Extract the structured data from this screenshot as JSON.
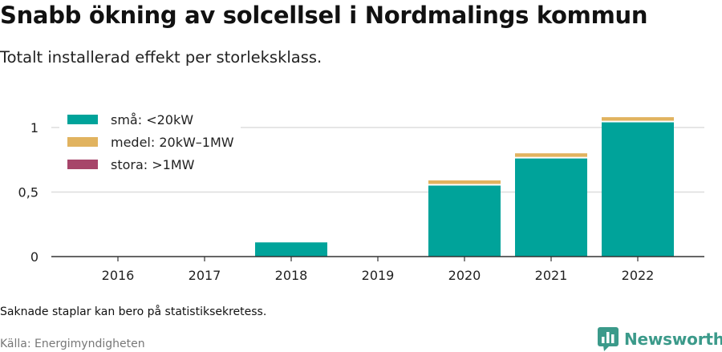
{
  "title": "Snabb ökning av solcellsel i Nordmalings kommun",
  "subtitle": "Totalt installerad effekt per storleksklass.",
  "note": "Saknade staplar kan bero på statistiksekretess.",
  "source": "Källa: Energimyndigheten",
  "brand": {
    "name": "Newsworthy",
    "color": "#3b9a8a",
    "icon": "bar-chart-speech-bubble-icon"
  },
  "chart_data": {
    "type": "bar",
    "stacked": true,
    "categories": [
      "2016",
      "2017",
      "2018",
      "2019",
      "2020",
      "2021",
      "2022"
    ],
    "series": [
      {
        "name": "små: <20kW",
        "color": "#00a39a",
        "values": [
          0,
          0,
          0.11,
          0,
          0.55,
          0.76,
          1.04
        ]
      },
      {
        "name": "medel: 20kW–1MW",
        "color": "#e1b35f",
        "values": [
          0,
          0,
          0,
          0,
          0.04,
          0.04,
          0.04
        ]
      },
      {
        "name": "stora: >1MW",
        "color": "#a7456a",
        "values": [
          0,
          0,
          0,
          0,
          0,
          0,
          0
        ]
      }
    ],
    "yticks": [
      0,
      0.5,
      1
    ],
    "ytick_labels": [
      "0",
      "0,5",
      "1"
    ],
    "ylim": [
      0,
      1.1
    ],
    "grid": true,
    "legend_position": "top-left"
  }
}
